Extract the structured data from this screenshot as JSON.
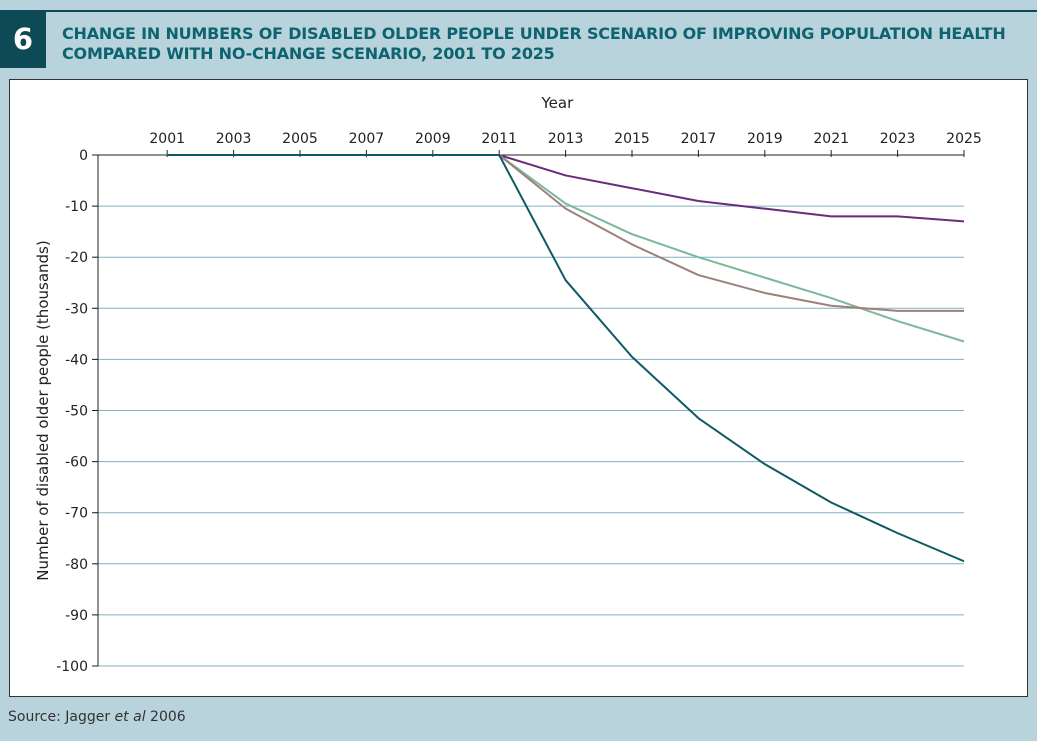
{
  "figure": {
    "number": "6",
    "title": "CHANGE IN NUMBERS OF DISABLED OLDER PEOPLE UNDER SCENARIO OF IMPROVING POPULATION HEALTH COMPARED WITH NO-CHANGE SCENARIO, 2001 TO 2025",
    "source_prefix": "Source: Jagger ",
    "source_italic": "et al",
    "source_suffix": " 2006"
  },
  "colors": {
    "background": "#b9d3dc",
    "badge": "#0d4a55",
    "title": "#0d6470",
    "gridline": "#7fb3c2",
    "series": [
      "#6a2c7a",
      "#7ab8a0",
      "#9c8079",
      "#0d5a62"
    ]
  },
  "chart_data": {
    "type": "line",
    "title": "",
    "xlabel": "Year",
    "ylabel": "Number of disabled older people (thousands)",
    "x_axis_position": "top",
    "x_ticks": [
      "2001",
      "2003",
      "2005",
      "2007",
      "2009",
      "2011",
      "2013",
      "2015",
      "2017",
      "2019",
      "2021",
      "2023",
      "2025"
    ],
    "y_ticks": [
      "0",
      "-10",
      "-20",
      "-30",
      "-40",
      "-50",
      "-60",
      "-70",
      "-80",
      "-90",
      "-100"
    ],
    "xlim": [
      2000,
      2025
    ],
    "ylim": [
      -100,
      0
    ],
    "grid": "horizontal",
    "legend": "none",
    "x": [
      2001,
      2011,
      2013,
      2015,
      2017,
      2019,
      2021,
      2023,
      2025
    ],
    "series": [
      {
        "values": [
          0,
          0,
          -4,
          -6.5,
          -9,
          -10.5,
          -12,
          -12,
          -13
        ]
      },
      {
        "values": [
          0,
          0,
          -9.5,
          -15.5,
          -20,
          -24,
          -28,
          -32.5,
          -36.5
        ]
      },
      {
        "values": [
          0,
          0,
          -10.5,
          -17.5,
          -23.5,
          -27,
          -29.5,
          -30.5,
          -30.5
        ]
      },
      {
        "values": [
          0,
          0,
          -24.5,
          -39.5,
          -51.5,
          -60.5,
          -68,
          -74,
          -79.5
        ]
      }
    ]
  }
}
